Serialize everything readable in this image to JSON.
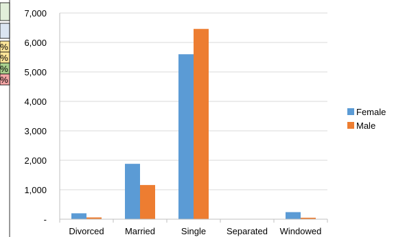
{
  "background": {
    "cells": [
      {
        "text": "%",
        "color": "#ffe699"
      },
      {
        "text": "%",
        "color": "#ffe699"
      },
      {
        "text": "%",
        "color": "#a9d18e"
      },
      {
        "text": "%",
        "color": "#f4a6a6"
      }
    ],
    "header_color": "#e2efda",
    "row_color": "#dbe5f1"
  },
  "chart_data": {
    "type": "bar",
    "categories": [
      "Divorced",
      "Married",
      "Single",
      "Separated",
      "Windowed"
    ],
    "series": [
      {
        "name": "Female",
        "color": "#5b9bd5",
        "values": [
          200,
          1880,
          5600,
          10,
          240
        ]
      },
      {
        "name": "Male",
        "color": "#ed7d31",
        "values": [
          60,
          1160,
          6460,
          5,
          50
        ]
      }
    ],
    "ylim": [
      0,
      7000
    ],
    "yticks": [
      "-",
      "1,000",
      "2,000",
      "3,000",
      "4,000",
      "5,000",
      "6,000",
      "7,000"
    ],
    "grid": true,
    "legend": "right",
    "title": "",
    "xlabel": "",
    "ylabel": ""
  }
}
